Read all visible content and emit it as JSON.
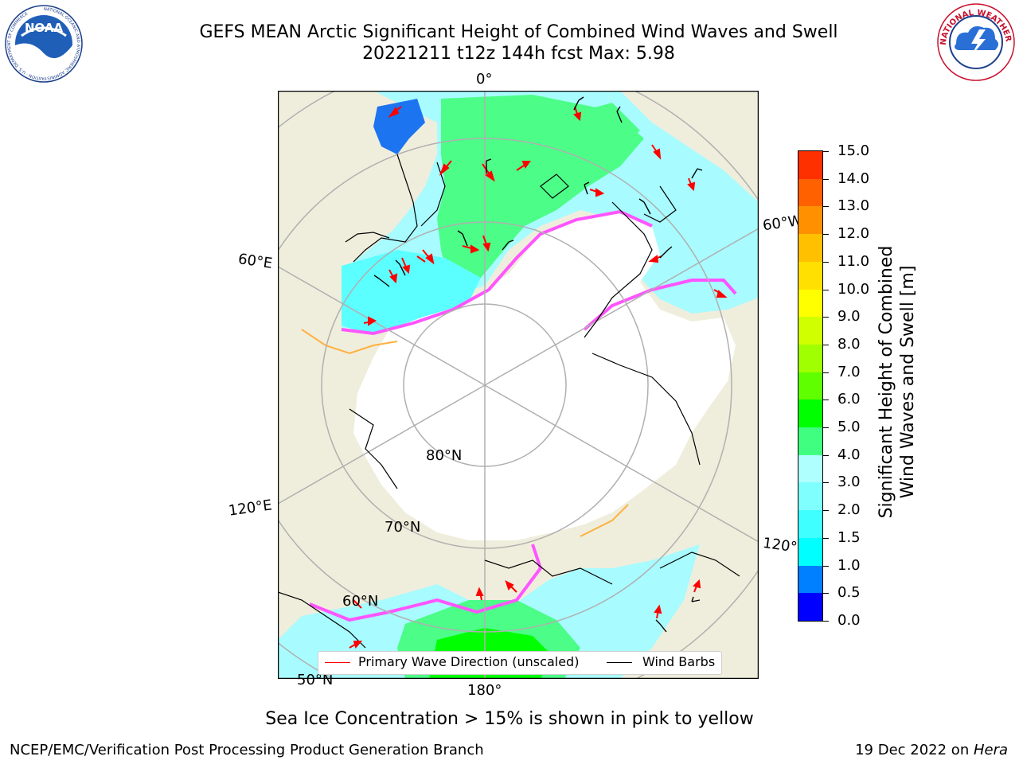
{
  "header": {
    "title": "GEFS MEAN Arctic Significant Height of Combined Wind Waves and Swell",
    "subtitle": "20221211 t12z 144h fcst   Max: 5.98"
  },
  "logos": {
    "noaa": "NOAA",
    "noaa_ring": "NATIONAL OCEANIC AND ATMOSPHERIC ADMINISTRATION · U.S. DEPARTMENT OF COMMERCE",
    "nws_ring": "NATIONAL WEATHER SERVICE"
  },
  "map": {
    "projection": "north polar stereographic",
    "labels": {
      "lon_0": "0°",
      "lon_60e": "60°E",
      "lon_60w": "60°W",
      "lon_120e": "120°E",
      "lon_120w": "120°W",
      "lon_180": "180°",
      "lat_80": "80°N",
      "lat_70": "70°N",
      "lat_60": "60°N",
      "lat_50": "50°N"
    },
    "colors": {
      "land": "#efeedc",
      "ice": "#ffffff",
      "graticule": "#b0b0b0",
      "ice_edge": "#ff55ff"
    }
  },
  "legend": {
    "wave_direction": "Primary Wave Direction (unscaled)",
    "wind_barbs": "Wind Barbs",
    "wave_color": "#ff0000",
    "barb_color": "#000000"
  },
  "colorbar": {
    "label_line1": "Significant Height of Combined",
    "label_line2": "Wind Waves and Swell [m]",
    "ticks": [
      "0.0",
      "0.5",
      "1.0",
      "1.5",
      "2.0",
      "3.0",
      "4.0",
      "5.0",
      "6.0",
      "7.0",
      "8.0",
      "9.0",
      "10.0",
      "11.0",
      "12.0",
      "13.0",
      "14.0",
      "15.0"
    ],
    "colors": [
      "#0000ff",
      "#0080ff",
      "#00ffff",
      "#40ffff",
      "#80ffff",
      "#b0ffff",
      "#40ff80",
      "#00ff00",
      "#60ff00",
      "#a0ff00",
      "#d0ff00",
      "#ffff00",
      "#ffe000",
      "#ffc000",
      "#ff9000",
      "#ff6000",
      "#ff3000"
    ]
  },
  "note": "Sea Ice Concentration > 15% is shown in pink to yellow",
  "footer": {
    "left": "NCEP/EMC/Verification Post Processing Product Generation Branch",
    "date": "19 Dec 2022 on ",
    "host": "Hera"
  }
}
